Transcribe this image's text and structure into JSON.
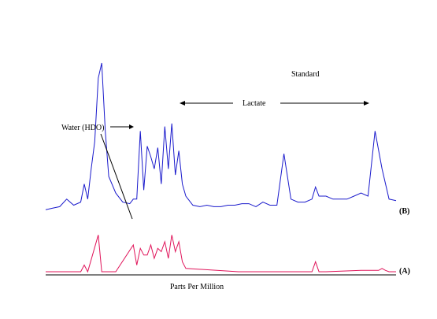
{
  "chart_data": {
    "type": "line",
    "xlabel": "Parts Per Million",
    "series": [
      {
        "name": "(B)",
        "color": "#1a1acc",
        "x": [
          0,
          2,
          4,
          6,
          8,
          10,
          11,
          12,
          13,
          14,
          15,
          16,
          17,
          18,
          20,
          22,
          24,
          25,
          26,
          27,
          28,
          29,
          30,
          31,
          32,
          33,
          34,
          35,
          36,
          37,
          38,
          39,
          40,
          42,
          44,
          46,
          48,
          50,
          52,
          54,
          56,
          58,
          60,
          62,
          64,
          66,
          68,
          70,
          72,
          74,
          76,
          77,
          78,
          80,
          82,
          84,
          86,
          88,
          90,
          92,
          94,
          96,
          98,
          100
        ],
        "y": [
          0.03,
          0.04,
          0.05,
          0.1,
          0.06,
          0.08,
          0.2,
          0.1,
          0.3,
          0.48,
          0.9,
          1.0,
          0.55,
          0.25,
          0.14,
          0.08,
          0.07,
          0.1,
          0.1,
          0.55,
          0.16,
          0.45,
          0.38,
          0.3,
          0.44,
          0.2,
          0.58,
          0.3,
          0.6,
          0.26,
          0.42,
          0.2,
          0.12,
          0.06,
          0.05,
          0.06,
          0.05,
          0.05,
          0.06,
          0.06,
          0.07,
          0.07,
          0.05,
          0.08,
          0.06,
          0.06,
          0.4,
          0.1,
          0.08,
          0.08,
          0.1,
          0.18,
          0.12,
          0.12,
          0.1,
          0.1,
          0.1,
          0.12,
          0.14,
          0.12,
          0.55,
          0.3,
          0.1,
          0.09
        ]
      },
      {
        "name": "(A)",
        "color": "#e0145a",
        "x": [
          0,
          10,
          11,
          12,
          15,
          16,
          20,
          25,
          26,
          27,
          28,
          29,
          30,
          31,
          32,
          33,
          34,
          35,
          36,
          37,
          38,
          39,
          40,
          55,
          76,
          77,
          78,
          80,
          90,
          95,
          96,
          97,
          98,
          100
        ],
        "y": [
          0.0,
          0.0,
          0.1,
          0.0,
          0.55,
          0.0,
          0.0,
          0.4,
          0.1,
          0.35,
          0.25,
          0.25,
          0.4,
          0.2,
          0.35,
          0.3,
          0.45,
          0.2,
          0.55,
          0.3,
          0.45,
          0.15,
          0.05,
          0.0,
          0.0,
          0.15,
          0.0,
          0.0,
          0.02,
          0.02,
          0.05,
          0.02,
          0.0,
          0.0
        ]
      }
    ],
    "annotations": {
      "water": "Water (HDO)",
      "lactate": "Lactate",
      "standard": "Standard"
    }
  }
}
